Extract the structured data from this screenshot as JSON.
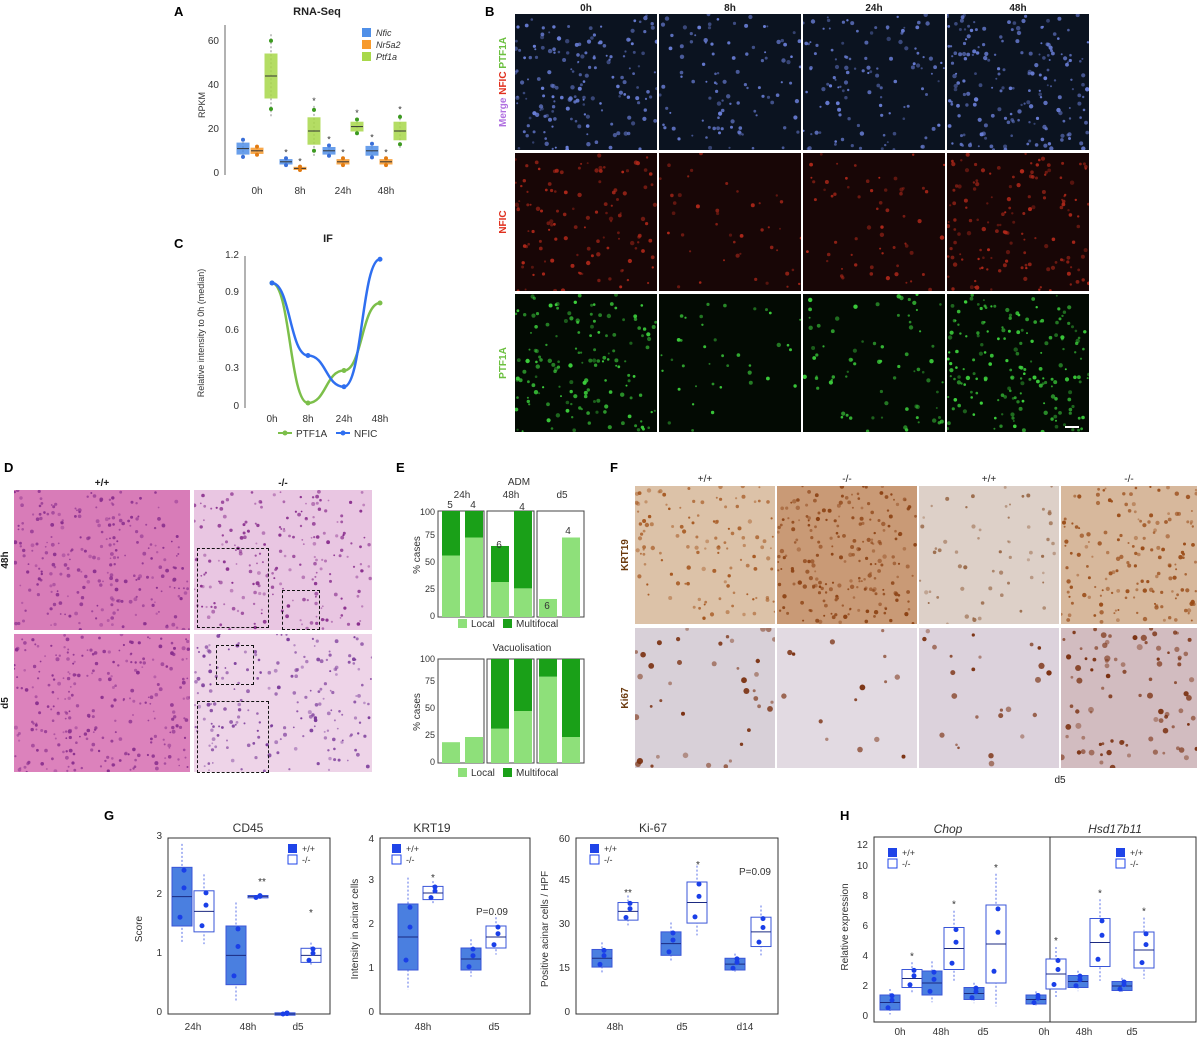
{
  "panels": {
    "A": {
      "label": "A",
      "title": "RNA-Seq",
      "ylabel": "RPKM",
      "yticks": [
        "0",
        "20",
        "40",
        "60"
      ],
      "categories": [
        "0h",
        "8h",
        "24h",
        "48h"
      ],
      "legend": [
        "Nfic",
        "Nr5a2",
        "Ptf1a"
      ],
      "star": "*"
    },
    "B": {
      "label": "B",
      "columns": [
        "0h",
        "8h",
        "24h",
        "48h"
      ],
      "row_labels": {
        "merge": "Merge",
        "nfic_in_merge": "NFIC",
        "ptf1a_in_merge": "PTF1A",
        "nfic": "NFIC",
        "ptf1a": "PTF1A"
      }
    },
    "C": {
      "label": "C",
      "title": "IF",
      "ylabel": "Relative intensity to 0h (median)",
      "yticks": [
        "0",
        "0.3",
        "0.6",
        "0.9",
        "1.2"
      ],
      "categories": [
        "0h",
        "8h",
        "24h",
        "48h"
      ],
      "legend": [
        "PTF1A",
        "NFIC"
      ]
    },
    "D": {
      "label": "D",
      "columns": [
        "+/+",
        "-/-"
      ],
      "rows": [
        "48h",
        "d5"
      ]
    },
    "E": {
      "label": "E",
      "top_title": "ADM",
      "bottom_title": "Vacuolisation",
      "ylabel": "% cases",
      "yticks": [
        "0",
        "25",
        "50",
        "75",
        "100"
      ],
      "groups": [
        "24h",
        "48h",
        "d5"
      ],
      "top_counts": [
        "5",
        "4",
        "6",
        "4",
        "6",
        "4"
      ],
      "legend": [
        "Local",
        "Multifocal"
      ]
    },
    "F": {
      "label": "F",
      "columns": [
        "+/+",
        "-/-",
        "+/+",
        "-/-"
      ],
      "rows": [
        "KRT19",
        "Ki67"
      ],
      "footer": "d5"
    },
    "G": {
      "label": "G",
      "cd45": {
        "title": "CD45",
        "ylabel": "Score",
        "yticks": [
          "0",
          "1",
          "2",
          "3"
        ],
        "categories": [
          "24h",
          "48h",
          "d5"
        ],
        "sig": [
          "**",
          "*"
        ]
      },
      "krt19": {
        "title": "KRT19",
        "ylabel": "Intensity in acinar cells",
        "yticks": [
          "0",
          "1",
          "2",
          "3",
          "4"
        ],
        "categories": [
          "48h",
          "d5"
        ],
        "sig": [
          "*",
          "P=0.09"
        ]
      },
      "ki67": {
        "title": "Ki-67",
        "ylabel": "Positive acinar cells / HPF",
        "yticks": [
          "0",
          "15",
          "30",
          "45",
          "60"
        ],
        "categories": [
          "48h",
          "d5",
          "d14"
        ],
        "sig": [
          "**",
          "*",
          "P=0.09"
        ]
      },
      "legend": [
        "+/+",
        "-/-"
      ]
    },
    "H": {
      "label": "H",
      "ylabel": "Relative expression",
      "yticks": [
        "0",
        "2",
        "4",
        "6",
        "8",
        "10",
        "12"
      ],
      "categories": [
        "0h",
        "48h",
        "d5"
      ],
      "genes": [
        "Chop",
        "Hsd17b11"
      ],
      "legend": [
        "+/+",
        "-/-"
      ],
      "star": "*"
    }
  },
  "colors": {
    "nfic": "#4f8fe8",
    "nr5a2": "#f79a2c",
    "ptf1a": "#a8d84a",
    "ptf1a_line": "#7cbf4a",
    "nfic_line": "#2f6ff0",
    "local": "#8ee07a",
    "multifocal": "#1aa018",
    "wt_box": "#4a7fe0",
    "ko_box": "#ffffff",
    "dot": "#1a3fe8"
  },
  "chart_data": [
    {
      "id": "A",
      "type": "box",
      "title": "RNA-Seq",
      "ylabel": "RPKM",
      "ylim": [
        0,
        65
      ],
      "categories": [
        "0h",
        "8h",
        "24h",
        "48h"
      ],
      "series": [
        {
          "name": "Nfic",
          "medians": [
            12,
            6,
            11,
            11
          ]
        },
        {
          "name": "Nr5a2",
          "medians": [
            11,
            3,
            6,
            6
          ]
        },
        {
          "name": "Ptf1a",
          "medians": [
            45,
            20,
            22,
            20
          ]
        }
      ]
    },
    {
      "id": "C",
      "type": "line",
      "title": "IF",
      "ylabel": "Relative intensity to 0h (median)",
      "ylim": [
        0,
        1.2
      ],
      "categories": [
        "0h",
        "8h",
        "24h",
        "48h"
      ],
      "series": [
        {
          "name": "PTF1A",
          "values": [
            1.0,
            0.04,
            0.3,
            0.84
          ]
        },
        {
          "name": "NFIC",
          "values": [
            1.0,
            0.42,
            0.17,
            1.19
          ]
        }
      ]
    },
    {
      "id": "E-ADM",
      "type": "bar",
      "title": "ADM",
      "ylabel": "% cases",
      "ylim": [
        0,
        100
      ],
      "categories": [
        "24h +/+",
        "24h -/-",
        "48h +/+",
        "48h -/-",
        "d5 +/+",
        "d5 -/-"
      ],
      "series": [
        {
          "name": "Local",
          "values": [
            58,
            75,
            33,
            27,
            17,
            75
          ]
        },
        {
          "name": "Multifocal",
          "values": [
            42,
            25,
            34,
            73,
            0,
            0
          ]
        }
      ]
    },
    {
      "id": "E-Vacuolisation",
      "type": "bar",
      "title": "Vacuolisation",
      "ylabel": "% cases",
      "ylim": [
        0,
        100
      ],
      "categories": [
        "24h +/+",
        "24h -/-",
        "48h +/+",
        "48h -/-",
        "d5 +/+",
        "d5 -/-"
      ],
      "series": [
        {
          "name": "Local",
          "values": [
            20,
            25,
            33,
            50,
            83,
            25
          ]
        },
        {
          "name": "Multifocal",
          "values": [
            0,
            0,
            67,
            50,
            17,
            75
          ]
        }
      ]
    },
    {
      "id": "G-CD45",
      "type": "box",
      "title": "CD45",
      "ylabel": "Score",
      "ylim": [
        0,
        3
      ],
      "categories": [
        "24h",
        "48h",
        "d5"
      ],
      "series": [
        {
          "name": "+/+",
          "medians": [
            2,
            1,
            0
          ]
        },
        {
          "name": "-/-",
          "medians": [
            1.75,
            2,
            1
          ]
        }
      ]
    },
    {
      "id": "G-KRT19",
      "type": "box",
      "title": "KRT19",
      "ylabel": "Intensity in acinar cells",
      "ylim": [
        0,
        4
      ],
      "categories": [
        "48h",
        "d5"
      ],
      "series": [
        {
          "name": "+/+",
          "medians": [
            1.75,
            1.25
          ]
        },
        {
          "name": "-/-",
          "medians": [
            2.75,
            1.75
          ]
        }
      ]
    },
    {
      "id": "G-Ki67",
      "type": "box",
      "title": "Ki-67",
      "ylabel": "Positive acinar cells / HPF",
      "ylim": [
        0,
        60
      ],
      "categories": [
        "48h",
        "d5",
        "d14"
      ],
      "series": [
        {
          "name": "+/+",
          "medians": [
            19,
            24,
            17
          ]
        },
        {
          "name": "-/-",
          "medians": [
            35,
            38,
            28
          ]
        }
      ]
    },
    {
      "id": "H-Chop",
      "type": "box",
      "title": "Chop",
      "ylabel": "Relative expression",
      "ylim": [
        0,
        12
      ],
      "categories": [
        "0h",
        "48h",
        "d5"
      ],
      "series": [
        {
          "name": "+/+",
          "medians": [
            0.9,
            2.2,
            1.5
          ]
        },
        {
          "name": "-/-",
          "medians": [
            2.5,
            4.5,
            4.8
          ]
        }
      ]
    },
    {
      "id": "H-Hsd17b11",
      "type": "box",
      "title": "Hsd17b11",
      "ylabel": "Relative expression",
      "ylim": [
        0,
        12
      ],
      "categories": [
        "0h",
        "48h",
        "d5"
      ],
      "series": [
        {
          "name": "+/+",
          "medians": [
            1.1,
            2.3,
            2.0
          ]
        },
        {
          "name": "-/-",
          "medians": [
            2.8,
            4.9,
            4.4
          ]
        }
      ]
    }
  ]
}
